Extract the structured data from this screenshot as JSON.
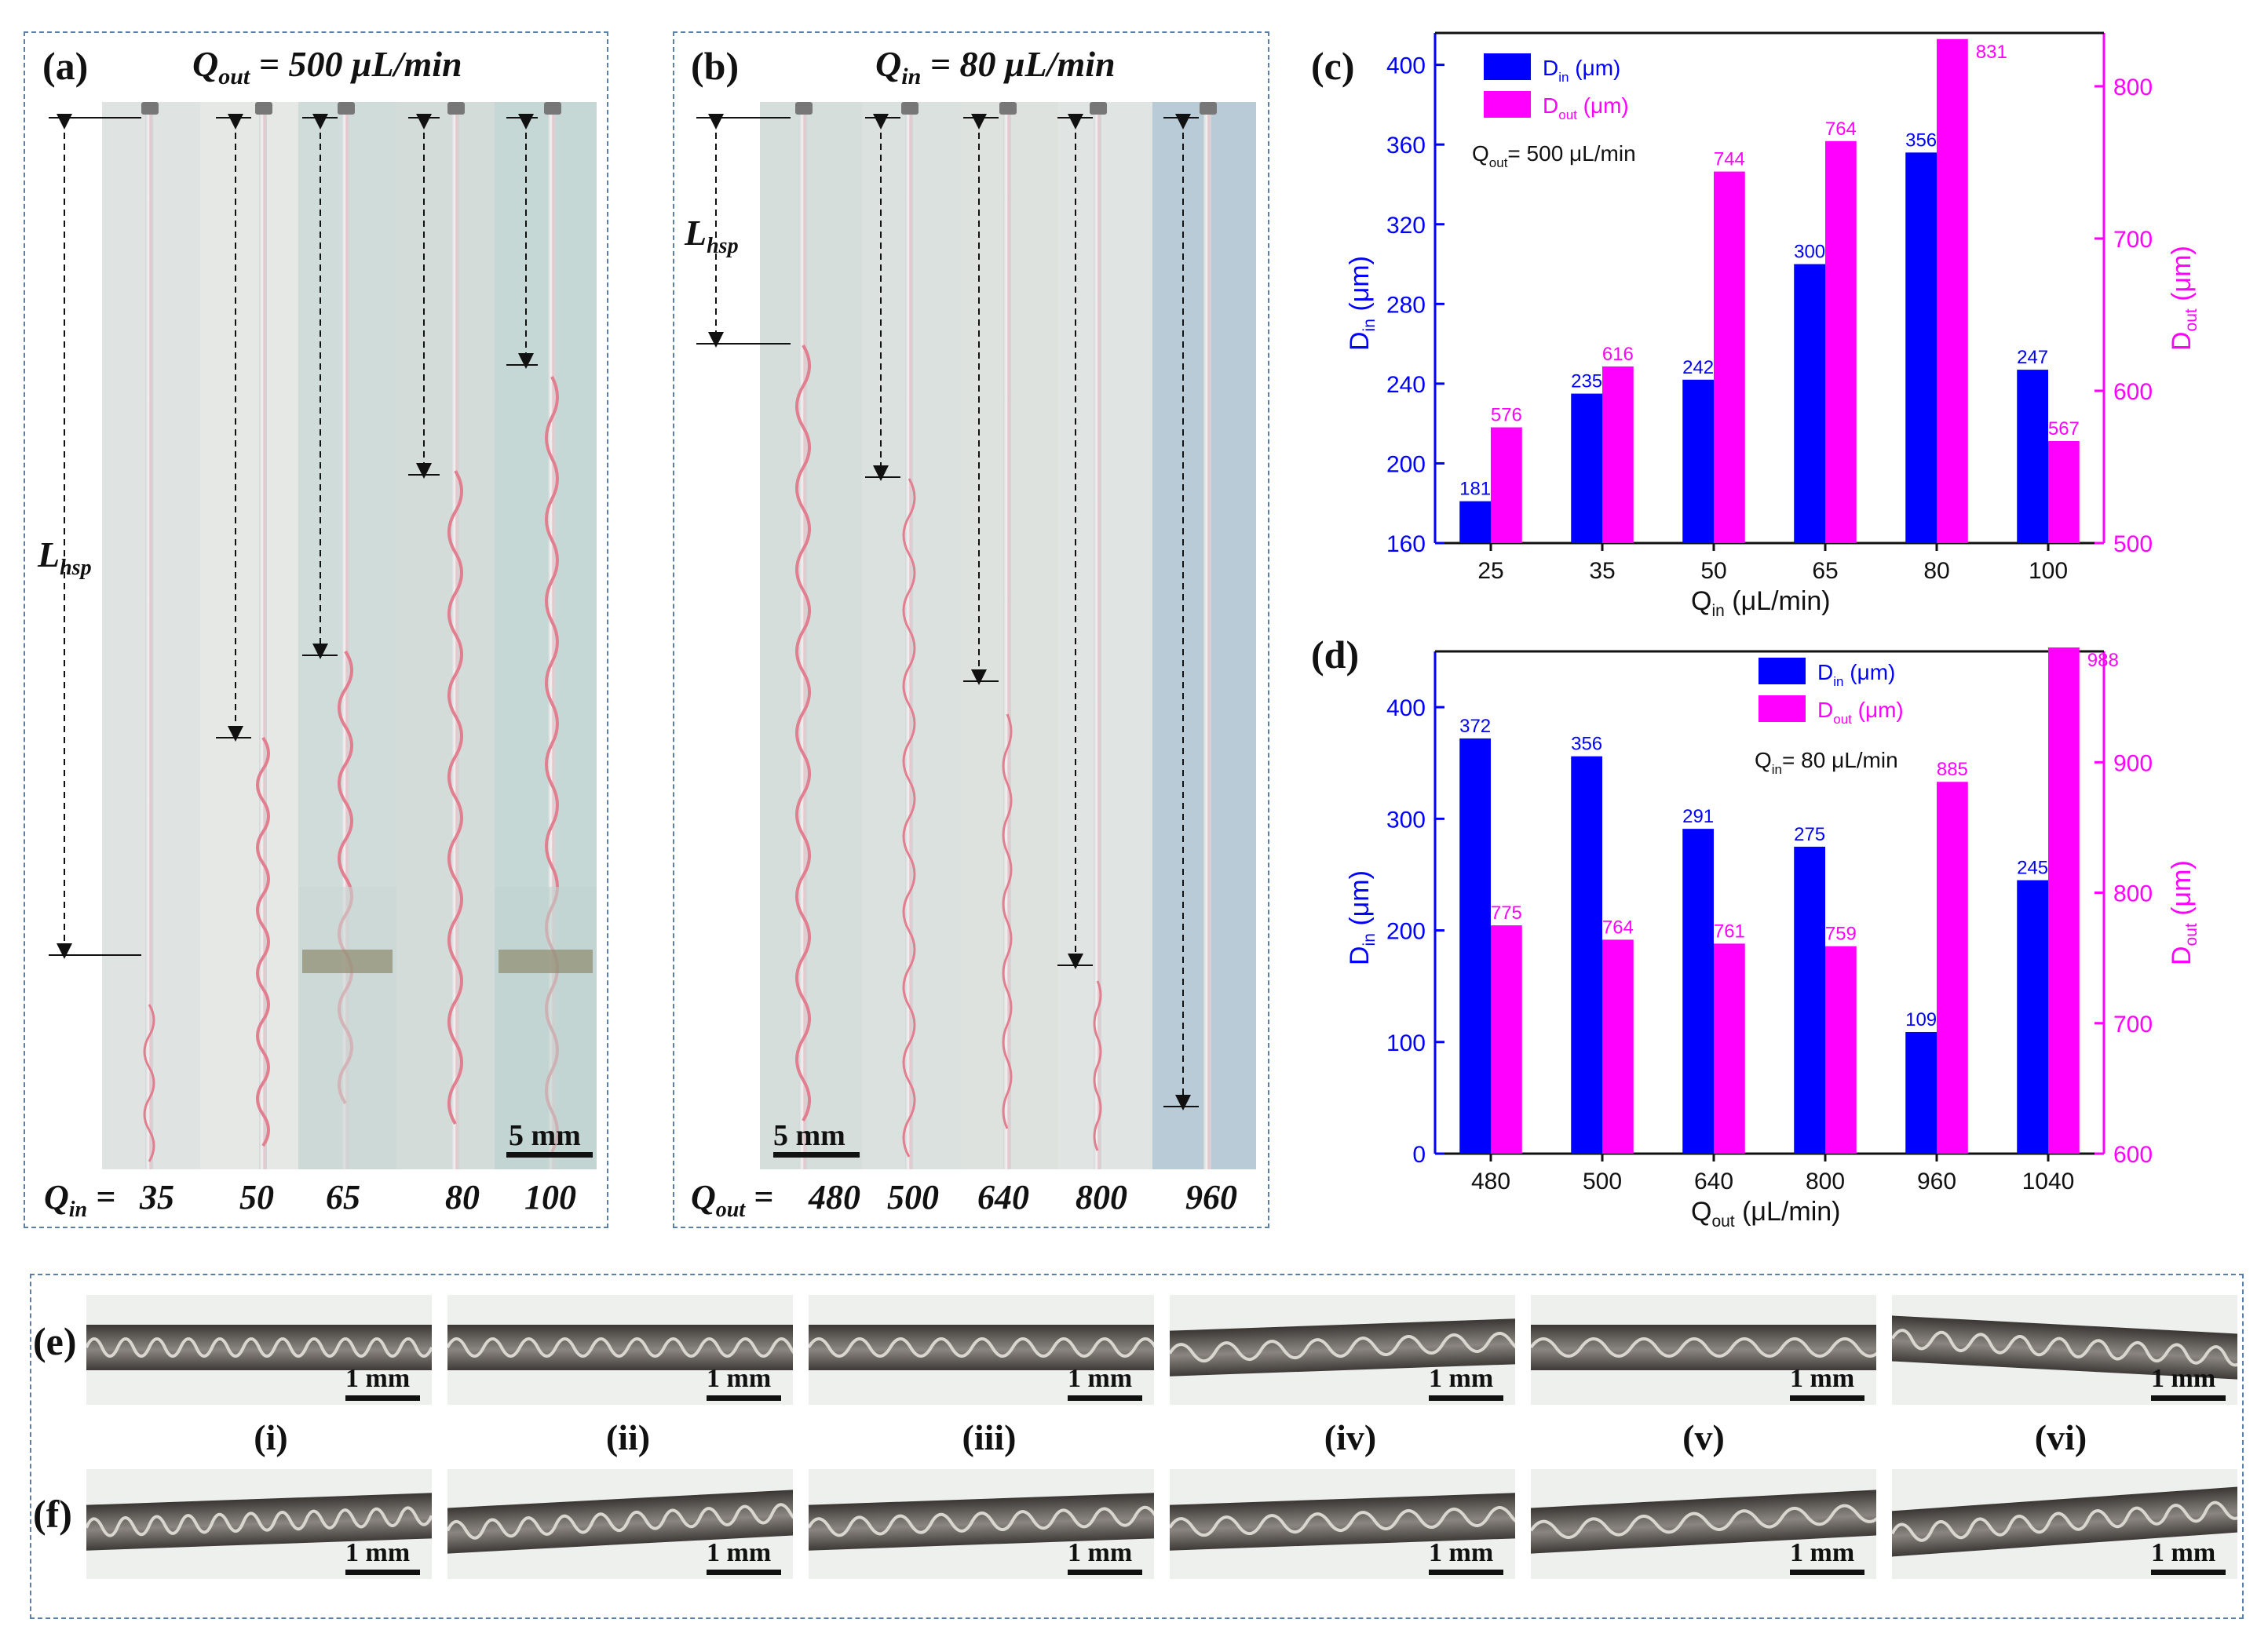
{
  "panel_a": {
    "label": "(a)",
    "title": "Q",
    "title_sub": "out",
    "title_rest": " = 500 μL/min",
    "lhsp_label": "L",
    "lhsp_sub": "hsp",
    "scale_bar": "5 mm",
    "bottom_prefix": "Q",
    "bottom_sub": "in",
    "bottom_eq": " = ",
    "flow_values": [
      "35",
      "50",
      "65",
      "80",
      "100"
    ]
  },
  "panel_b": {
    "label": "(b)",
    "title": "Q",
    "title_sub": "in",
    "title_rest": " = 80 μL/min",
    "lhsp_label": "L",
    "lhsp_sub": "hsp",
    "scale_bar": "5 mm",
    "bottom_prefix": "Q",
    "bottom_sub": "out",
    "bottom_eq": " = ",
    "flow_values": [
      "480",
      "500",
      "640",
      "800",
      "960"
    ]
  },
  "chart_data": [
    {
      "panel": "(c)",
      "type": "bar",
      "categories": [
        "25",
        "35",
        "50",
        "65",
        "80",
        "100"
      ],
      "xlabel": "Q",
      "xlabel_sub": "in",
      "xlabel_unit": " (μL/min)",
      "series": [
        {
          "name": "D",
          "name_sub": "in",
          "unit": " (μm)",
          "axis": "left",
          "color": "#0000ff",
          "values": [
            181,
            235,
            242,
            300,
            356,
            247
          ]
        },
        {
          "name": "D",
          "name_sub": "out",
          "unit": " (μm)",
          "axis": "right",
          "color": "#ff00ff",
          "values": [
            576,
            616,
            744,
            764,
            831,
            567
          ]
        }
      ],
      "ylabel_left": "D",
      "ylabel_left_sub": "in",
      "ylabel_left_unit": " (μm)",
      "ylabel_right": "D",
      "ylabel_right_sub": "out",
      "ylabel_right_unit": " (μm)",
      "ylim_left": [
        160,
        416
      ],
      "ylim_right": [
        500,
        835
      ],
      "yticks_left": [
        160,
        200,
        240,
        280,
        320,
        360,
        400
      ],
      "yticks_right": [
        500,
        600,
        700,
        800
      ],
      "annotation": "Q",
      "annotation_sub": "out",
      "annotation_rest": "= 500 μL/min",
      "legend_position": "top-left"
    },
    {
      "panel": "(d)",
      "type": "bar",
      "categories": [
        "480",
        "500",
        "640",
        "800",
        "960",
        "1040"
      ],
      "xlabel": "Q",
      "xlabel_sub": "out",
      "xlabel_unit": " (μL/min)",
      "series": [
        {
          "name": "D",
          "name_sub": "in",
          "unit": " (μm)",
          "axis": "left",
          "color": "#0000ff",
          "values": [
            372,
            356,
            291,
            275,
            109,
            245
          ]
        },
        {
          "name": "D",
          "name_sub": "out",
          "unit": " (μm)",
          "axis": "right",
          "color": "#ff00ff",
          "values": [
            775,
            764,
            761,
            759,
            885,
            988
          ]
        }
      ],
      "ylabel_left": "D",
      "ylabel_left_sub": "in",
      "ylabel_left_unit": " (μm)",
      "ylabel_right": "D",
      "ylabel_right_sub": "out",
      "ylabel_right_unit": " (μm)",
      "ylim_left": [
        0,
        450
      ],
      "ylim_right": [
        600,
        985
      ],
      "yticks_left": [
        0,
        100,
        200,
        300,
        400
      ],
      "yticks_right": [
        600,
        700,
        800,
        900
      ],
      "annotation": "Q",
      "annotation_sub": "in",
      "annotation_rest": "= 80 μL/min",
      "legend_position": "top-center"
    }
  ],
  "panel_ef": {
    "label_e": "(e)",
    "label_f": "(f)",
    "roman": [
      "(i)",
      "(ii)",
      "(iii)",
      "(iv)",
      "(v)",
      "(vi)"
    ],
    "scale_bar": "1 mm"
  },
  "colors": {
    "blue": "#0000ff",
    "magenta": "#ff00ff",
    "frame": "#5b7fa6"
  }
}
